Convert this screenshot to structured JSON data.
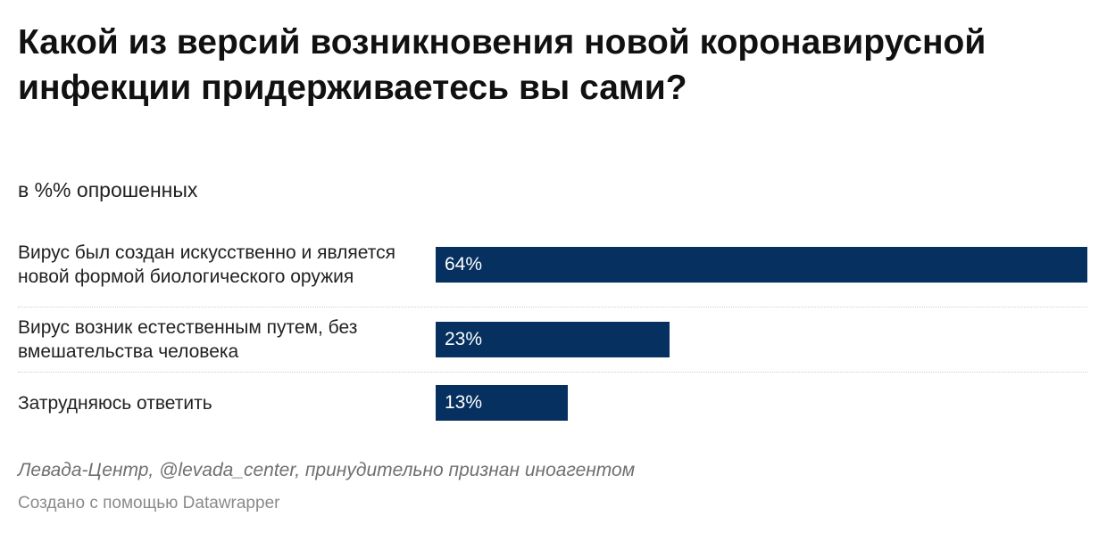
{
  "title": "Какой из версий возникновения новой коронавирусной инфекции придерживаетесь вы сами?",
  "subtitle": "в %% опрошенных",
  "chart_data": {
    "type": "bar",
    "orientation": "horizontal",
    "title": "Какой из версий возникновения новой коронавирусной инфекции придерживаетесь вы сами?",
    "subtitle": "в %% опрошенных",
    "categories": [
      "Вирус был создан искусственно и является новой формой биологического оружия",
      "Вирус возник естественным путем, без вмешательства человека",
      "Затрудняюсь ответить"
    ],
    "values": [
      64,
      23,
      13
    ],
    "value_labels": [
      "64%",
      "23%",
      "13%"
    ],
    "xlim": [
      0,
      64
    ],
    "bar_color": "#05305f",
    "value_label_color": "#ffffff",
    "grid": false,
    "legend": "none"
  },
  "footer": {
    "source": "Левада-Центр, @levada_center, принудительно признан иноагентом",
    "credit": "Создано с помощью Datawrapper"
  }
}
